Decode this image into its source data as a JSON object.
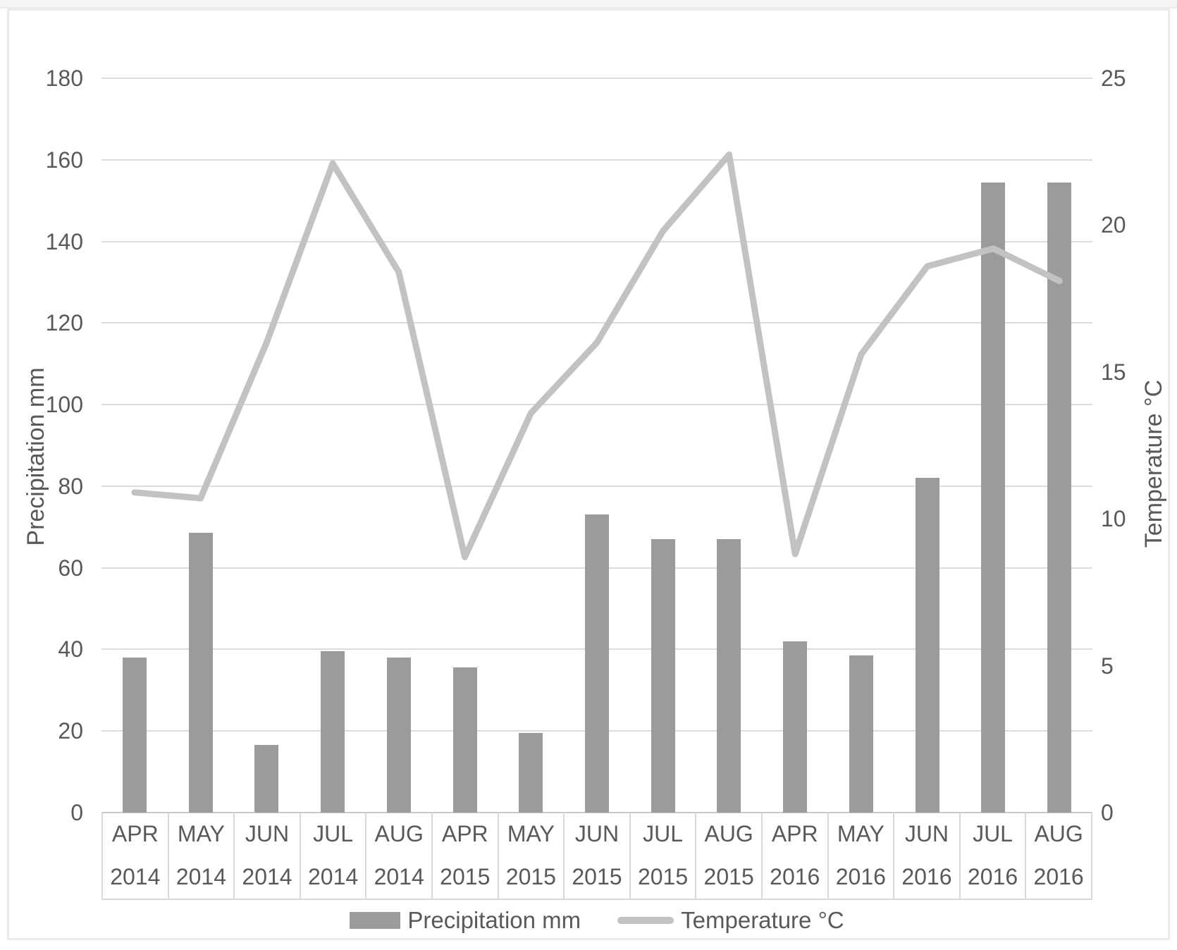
{
  "chart_data": {
    "type": "bar",
    "subtype": "combo-bar-line-dual-axis",
    "title": "",
    "categories": [
      {
        "month": "APR",
        "year": "2014"
      },
      {
        "month": "MAY",
        "year": "2014"
      },
      {
        "month": "JUN",
        "year": "2014"
      },
      {
        "month": "JUL",
        "year": "2014"
      },
      {
        "month": "AUG",
        "year": "2014"
      },
      {
        "month": "APR",
        "year": "2015"
      },
      {
        "month": "MAY",
        "year": "2015"
      },
      {
        "month": "JUN",
        "year": "2015"
      },
      {
        "month": "JUL",
        "year": "2015"
      },
      {
        "month": "AUG",
        "year": "2015"
      },
      {
        "month": "APR",
        "year": "2016"
      },
      {
        "month": "MAY",
        "year": "2016"
      },
      {
        "month": "JUN",
        "year": "2016"
      },
      {
        "month": "JUL",
        "year": "2016"
      },
      {
        "month": "AUG",
        "year": "2016"
      }
    ],
    "series": [
      {
        "name": "Precipitation mm",
        "type": "bar",
        "axis": "left",
        "values": [
          38,
          68.5,
          16.5,
          39.5,
          38,
          35.5,
          19.5,
          73,
          67,
          67,
          42,
          38.5,
          82,
          154.5,
          154.5
        ]
      },
      {
        "name": "Temperature °C",
        "type": "line",
        "axis": "right",
        "values": [
          10.9,
          10.7,
          16.0,
          22.1,
          18.4,
          8.7,
          13.6,
          16.0,
          19.8,
          22.4,
          8.8,
          15.6,
          18.6,
          19.2,
          18.1
        ]
      }
    ],
    "left_axis": {
      "label": "Precipitation mm",
      "min": 0,
      "max": 180,
      "step": 20
    },
    "right_axis": {
      "label": "Temperature °C",
      "min": 0,
      "max": 25,
      "step": 5
    },
    "grid": true,
    "legend_position": "bottom",
    "legend": [
      {
        "label": "Precipitation mm",
        "swatch": "bar"
      },
      {
        "label": "Temperature °C",
        "swatch": "line"
      }
    ],
    "colors": {
      "bar": "#9b9b9b",
      "line": "#c2c2c2",
      "gridline": "#dcdcdc",
      "zero_axis": "#c9c9c9",
      "cell_border": "#d9d9d9",
      "text": "#595959"
    }
  }
}
